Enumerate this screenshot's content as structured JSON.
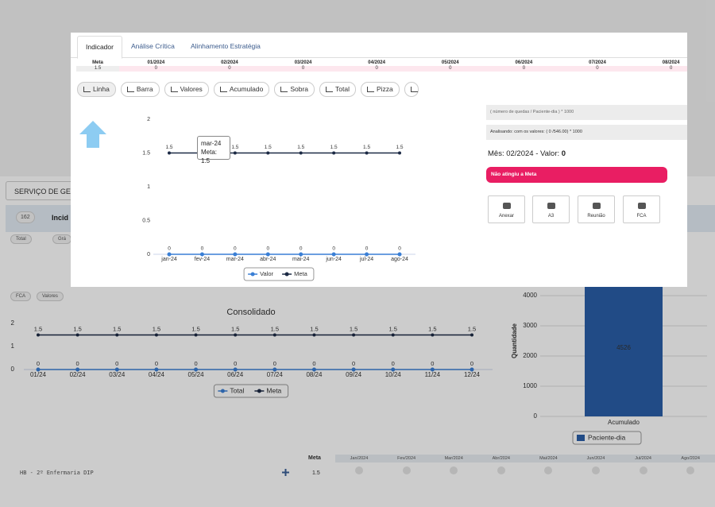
{
  "modal": {
    "tabs": [
      "Indicador",
      "Análise Crítica",
      "Alinhamento Estratégia"
    ],
    "summary": {
      "header": [
        "Meta",
        "01/2024",
        "02/2024",
        "03/2024",
        "04/2024",
        "05/2024",
        "06/2024",
        "07/2024",
        "08/2024"
      ],
      "row": [
        1.5,
        0,
        0,
        0,
        0,
        0,
        0,
        0,
        0
      ]
    },
    "buttons": [
      "Linha",
      "Barra",
      "Valores",
      "Acumulado",
      "Sobra",
      "Total",
      "Pizza"
    ],
    "tooltip": {
      "title": "mar-24",
      "text": "Meta: 1.5"
    },
    "formula": "( número de quedas / Paciente-dia ) * 1000",
    "analysis": "Analisando: com os valores: ( 0 /546.00) * 1000",
    "month_label": "Mês: 02/2024 - Valor:",
    "month_value": 0,
    "alert": "Não atingiu a Meta",
    "actions": [
      "Anexar",
      "A3",
      "Reunião",
      "FCA"
    ]
  },
  "background": {
    "section": "SERVIÇO DE GE",
    "count": 162,
    "tab": "Incid",
    "toggles": [
      "Total",
      "Grá"
    ],
    "pills": [
      "FCA",
      "Valores"
    ],
    "table": {
      "header": "Meta",
      "months": [
        "Jan/2024",
        "Fev/2024",
        "Mar/2024",
        "Abr/2024",
        "Mai/2024",
        "Jun/2024",
        "Jul/2024",
        "Ago/2024"
      ],
      "row_label": "HB - 2º Enfermaria DIP",
      "meta": 1.5
    }
  },
  "chart_data": [
    {
      "type": "line",
      "categories": [
        "jan-24",
        "fev-24",
        "mar-24",
        "abr-24",
        "mai-24",
        "jun-24",
        "jul-24",
        "ago-24"
      ],
      "series": [
        {
          "name": "Valor",
          "color": "#3a7fd5",
          "values": [
            0,
            0,
            0,
            0,
            0,
            0,
            0,
            0
          ]
        },
        {
          "name": "Meta",
          "color": "#1c2a45",
          "values": [
            1.5,
            1.5,
            1.5,
            1.5,
            1.5,
            1.5,
            1.5,
            1.5
          ]
        }
      ],
      "ylim": [
        0,
        2
      ],
      "yticks": [
        0,
        0.5,
        1,
        1.5,
        2
      ],
      "grid": false
    },
    {
      "type": "line",
      "title": "Consolidado",
      "categories": [
        "01/24",
        "02/24",
        "03/24",
        "04/24",
        "05/24",
        "06/24",
        "07/24",
        "08/24",
        "09/24",
        "10/24",
        "11/24",
        "12/24"
      ],
      "series": [
        {
          "name": "Total",
          "color": "#3a7fd5",
          "values": [
            0,
            0,
            0,
            0,
            0,
            0,
            0,
            0,
            0,
            0,
            0,
            0
          ]
        },
        {
          "name": "Meta",
          "color": "#1c2a45",
          "values": [
            1.5,
            1.5,
            1.5,
            1.5,
            1.5,
            1.5,
            1.5,
            1.5,
            1.5,
            1.5,
            1.5,
            1.5
          ]
        }
      ],
      "ylim": [
        0,
        2
      ],
      "yticks": [
        0,
        1,
        2
      ],
      "grid": false
    },
    {
      "type": "bar",
      "y_label": "Quantidade",
      "categories": [
        "Acumulado"
      ],
      "series": [
        {
          "name": "Paciente-dia",
          "color": "#2a5ea8",
          "values": [
            4526
          ]
        }
      ],
      "ylim": [
        0,
        5000
      ],
      "yticks": [
        0,
        1000,
        2000,
        3000,
        4000
      ],
      "grid": true
    }
  ]
}
